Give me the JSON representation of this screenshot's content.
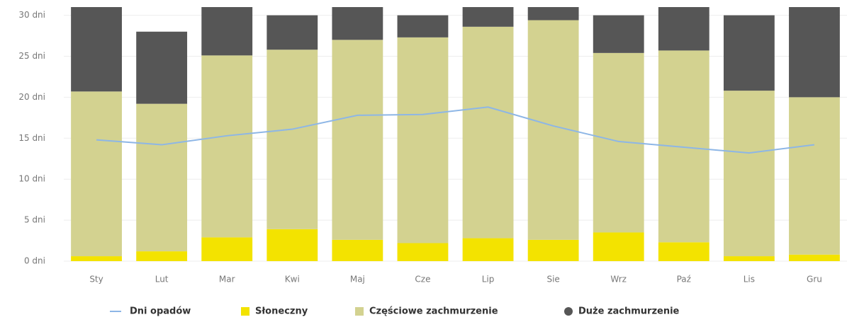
{
  "chart_data": {
    "type": "bar",
    "stacked": true,
    "categories": [
      "Sty",
      "Lut",
      "Mar",
      "Kwi",
      "Maj",
      "Cze",
      "Lip",
      "Sie",
      "Wrz",
      "Paź",
      "Lis",
      "Gru"
    ],
    "series": [
      {
        "name": "Dni opadów",
        "type": "line",
        "marker": "line",
        "color": "#8db6e6",
        "values": [
          14.8,
          14.2,
          15.3,
          16.1,
          17.8,
          17.9,
          18.8,
          16.5,
          14.6,
          13.9,
          13.2,
          14.2
        ]
      },
      {
        "name": "Słoneczny",
        "type": "bar",
        "marker": "square",
        "color": "#f3e300",
        "values": [
          0.6,
          1.2,
          2.9,
          3.9,
          2.6,
          2.2,
          2.8,
          2.6,
          3.5,
          2.3,
          0.6,
          0.8
        ]
      },
      {
        "name": "Częściowe zachmurzenie",
        "type": "bar",
        "marker": "square",
        "color": "#d3d290",
        "values": [
          20.1,
          18.0,
          22.2,
          21.9,
          24.4,
          25.1,
          25.8,
          26.8,
          21.9,
          23.4,
          20.2,
          19.2
        ]
      },
      {
        "name": "Duże zachmurzenie",
        "type": "bar",
        "marker": "circle",
        "color": "#565656",
        "values": [
          10.3,
          8.8,
          5.9,
          4.2,
          4.0,
          2.7,
          2.4,
          1.6,
          4.6,
          5.3,
          9.2,
          11.0
        ]
      }
    ],
    "ylim": [
      0,
      31
    ],
    "yticks": [
      {
        "value": 0,
        "label": "0 dni"
      },
      {
        "value": 5,
        "label": "5 dni"
      },
      {
        "value": 10,
        "label": "10 dni"
      },
      {
        "value": 15,
        "label": "15 dni"
      },
      {
        "value": 20,
        "label": "20 dni"
      },
      {
        "value": 25,
        "label": "25 dni"
      },
      {
        "value": 30,
        "label": "30 dni"
      }
    ],
    "grid": true
  }
}
